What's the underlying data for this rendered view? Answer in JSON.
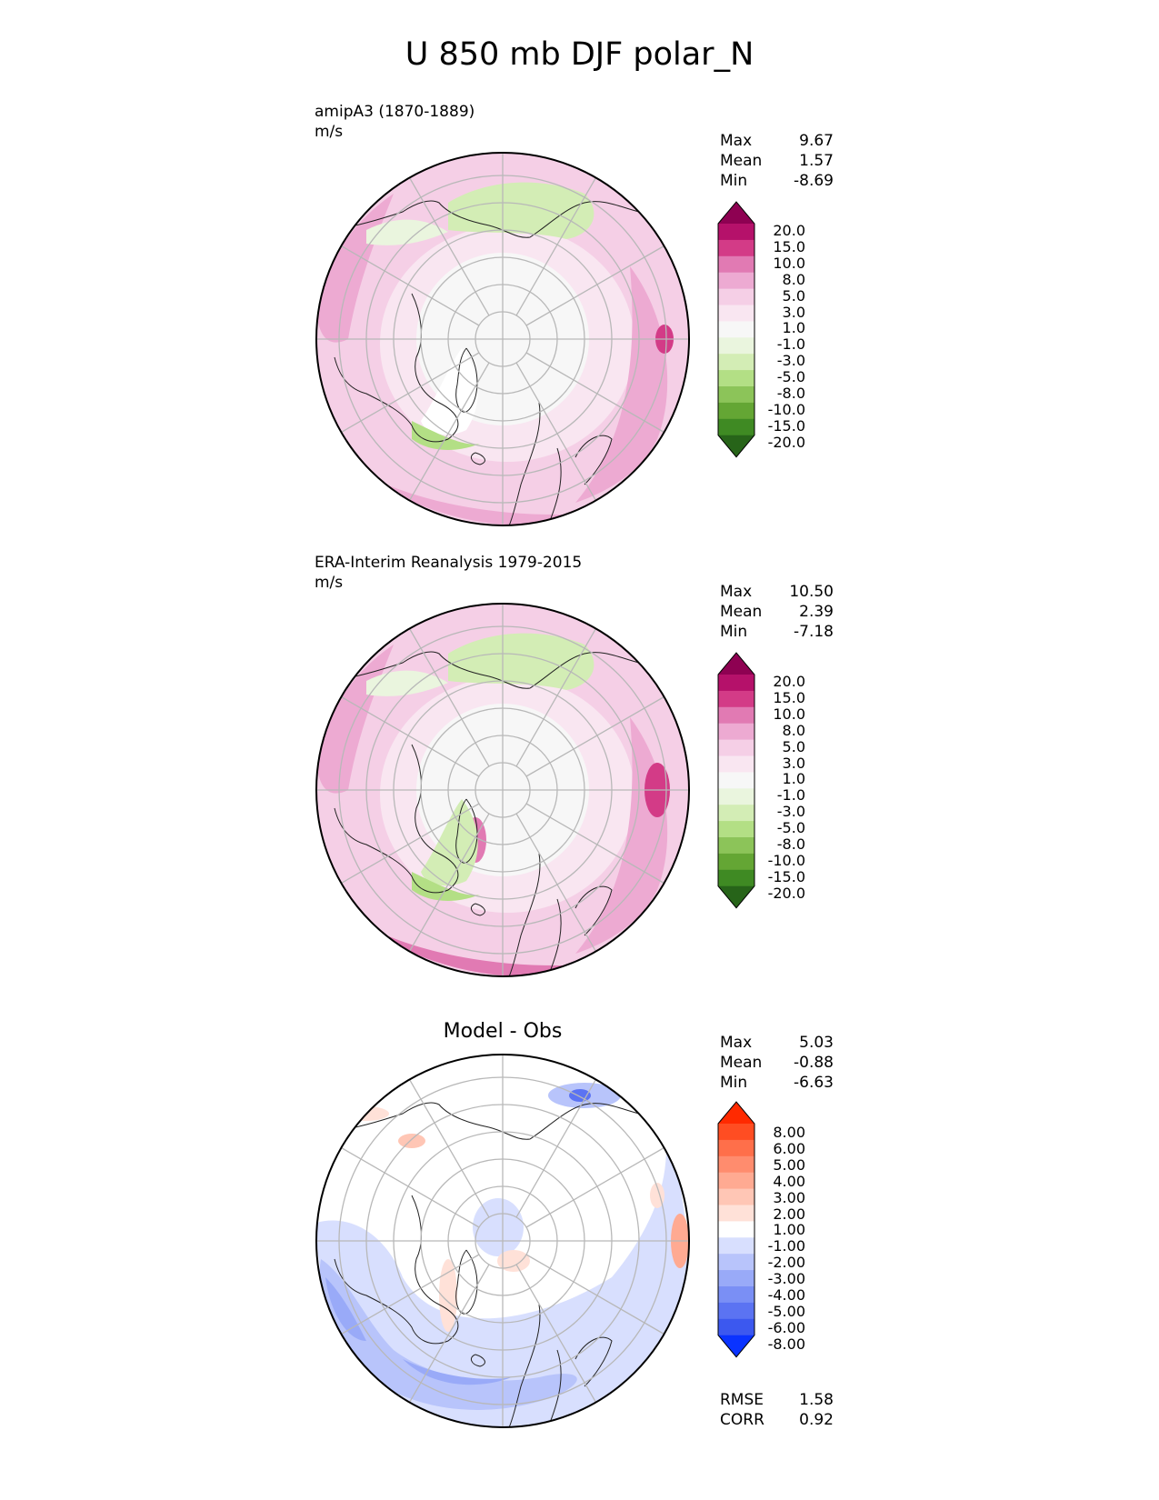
{
  "title": "U 850 mb DJF polar_N",
  "panels": [
    {
      "id": "model",
      "label": "amipA3 (1870-1889)",
      "units": "m/s",
      "stats": [
        {
          "name": "Max",
          "value": "9.67"
        },
        {
          "name": "Mean",
          "value": "1.57"
        },
        {
          "name": "Min",
          "value": "-8.69"
        }
      ],
      "ticks": [
        "20.0",
        "15.0",
        "10.0",
        "8.0",
        "5.0",
        "3.0",
        "1.0",
        "-1.0",
        "-3.0",
        "-5.0",
        "-8.0",
        "-10.0",
        "-15.0",
        "-20.0"
      ],
      "colors": [
        "#8e0152",
        "#b5116a",
        "#d33b87",
        "#e17ab3",
        "#edaad2",
        "#f5cfe6",
        "#f9e6f1",
        "#f7f7f7",
        "#eaf5de",
        "#d3edb5",
        "#b3df85",
        "#8cc459",
        "#64a634",
        "#3f8a23",
        "#276419"
      ]
    },
    {
      "id": "obs",
      "label": "ERA-Interim Reanalysis 1979-2015",
      "units": "m/s",
      "stats": [
        {
          "name": "Max",
          "value": "10.50"
        },
        {
          "name": "Mean",
          "value": "2.39"
        },
        {
          "name": "Min",
          "value": "-7.18"
        }
      ],
      "ticks": [
        "20.0",
        "15.0",
        "10.0",
        "8.0",
        "5.0",
        "3.0",
        "1.0",
        "-1.0",
        "-3.0",
        "-5.0",
        "-8.0",
        "-10.0",
        "-15.0",
        "-20.0"
      ],
      "colors": [
        "#8e0152",
        "#b5116a",
        "#d33b87",
        "#e17ab3",
        "#edaad2",
        "#f5cfe6",
        "#f9e6f1",
        "#f7f7f7",
        "#eaf5de",
        "#d3edb5",
        "#b3df85",
        "#8cc459",
        "#64a634",
        "#3f8a23",
        "#276419"
      ]
    },
    {
      "id": "diff",
      "label": "Model - Obs",
      "stats": [
        {
          "name": "Max",
          "value": "5.03"
        },
        {
          "name": "Mean",
          "value": "-0.88"
        },
        {
          "name": "Min",
          "value": "-6.63"
        }
      ],
      "ticks": [
        "8.00",
        "6.00",
        "5.00",
        "4.00",
        "3.00",
        "2.00",
        "1.00",
        "-1.00",
        "-2.00",
        "-3.00",
        "-4.00",
        "-5.00",
        "-6.00",
        "-8.00"
      ],
      "colors": [
        "#ff2a00",
        "#ff4d22",
        "#ff6f4a",
        "#ff8c6e",
        "#ffaa92",
        "#ffc6b5",
        "#ffe1d8",
        "#ffffff",
        "#d8dffe",
        "#b8c4fb",
        "#99aaf8",
        "#7a8ff5",
        "#5b73f2",
        "#3c58ef",
        "#0a33ff"
      ],
      "footer": [
        {
          "name": "RMSE",
          "value": "1.58"
        },
        {
          "name": "CORR",
          "value": "0.92"
        }
      ]
    }
  ]
}
